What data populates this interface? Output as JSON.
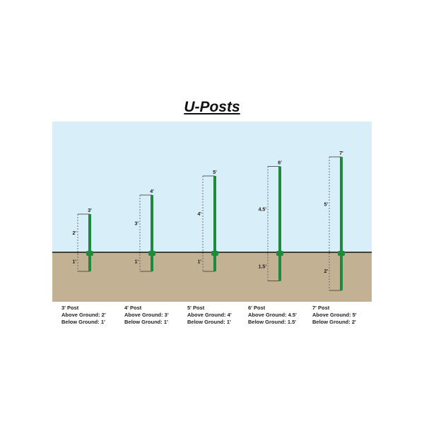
{
  "title": "U-Posts",
  "colors": {
    "sky": "#d8eef8",
    "ground": "#c3b194",
    "post": "#1f8a3e",
    "ground_line": "#111111"
  },
  "posts": [
    {
      "height_label": "3'",
      "above_label": "2'",
      "below_label": "1'",
      "above_ft": 2,
      "below_ft": 1,
      "caption": {
        "name": "3' Post",
        "above": "Above Ground: 2'",
        "below": "Below Ground: 1'"
      }
    },
    {
      "height_label": "4'",
      "above_label": "3'",
      "below_label": "1'",
      "above_ft": 3,
      "below_ft": 1,
      "caption": {
        "name": "4' Post",
        "above": "Above Ground: 3'",
        "below": "Below Ground: 1'"
      }
    },
    {
      "height_label": "5'",
      "above_label": "4'",
      "below_label": "1'",
      "above_ft": 4,
      "below_ft": 1,
      "caption": {
        "name": "5' Post",
        "above": "Above Ground: 4'",
        "below": "Below Ground: 1'"
      }
    },
    {
      "height_label": "6'",
      "above_label": "4.5'",
      "below_label": "1.5'",
      "above_ft": 4.5,
      "below_ft": 1.5,
      "caption": {
        "name": "6' Post",
        "above": "Above Ground: 4.5'",
        "below": "Below Ground: 1.5'"
      }
    },
    {
      "height_label": "7'",
      "above_label": "5'",
      "below_label": "2'",
      "above_ft": 5,
      "below_ft": 2,
      "caption": {
        "name": "7' Post",
        "above": "Above Ground: 5'",
        "below": "Below Ground: 2'"
      }
    }
  ]
}
